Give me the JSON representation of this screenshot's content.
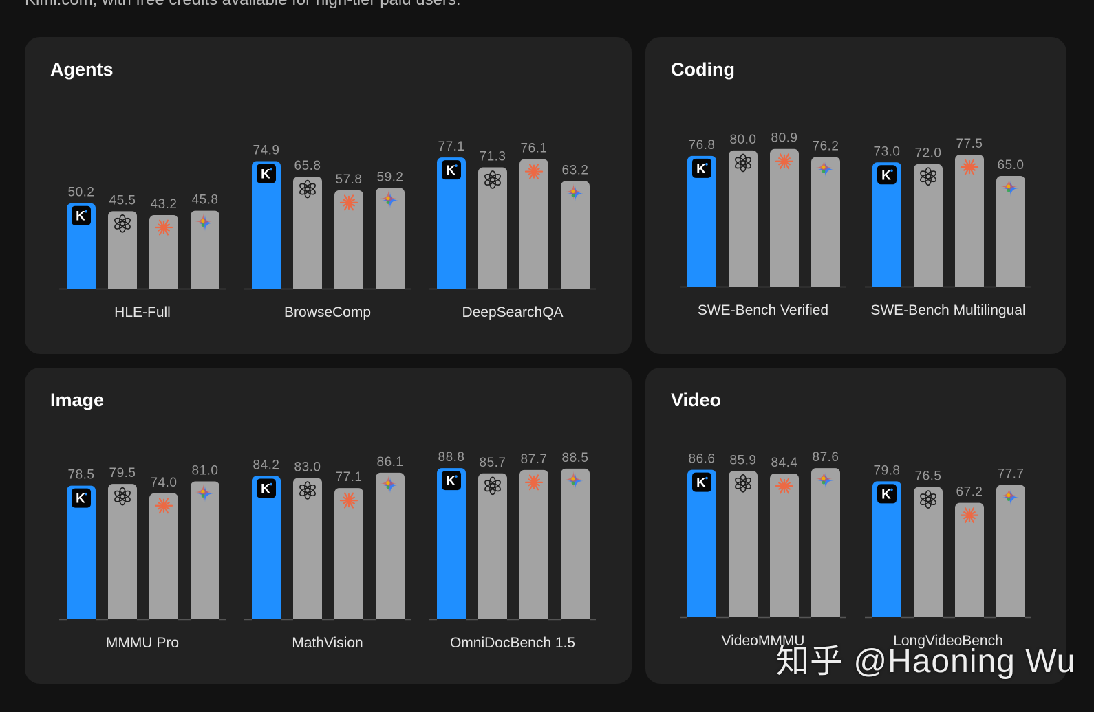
{
  "header": {
    "caption": "Kimi.com, with free credits available for high-tier paid users."
  },
  "colors": {
    "highlight": "#1f8fff",
    "bar": "#a3a3a3",
    "label": "#9a9a9a",
    "panel": "#222222",
    "background": "#121212"
  },
  "models": [
    {
      "name": "Kimi",
      "icon": "kimi-k-icon"
    },
    {
      "name": "OpenAI",
      "icon": "openai-logo-icon"
    },
    {
      "name": "Anthropic",
      "icon": "claude-starburst-icon"
    },
    {
      "name": "Gemini",
      "icon": "gemini-sparkle-icon"
    }
  ],
  "chart_data": [
    {
      "type": "bar",
      "title": "Agents",
      "categories": [
        "HLE-Full",
        "BrowseComp",
        "DeepSearchQA"
      ],
      "series": [
        {
          "name": "Kimi",
          "values": [
            50.2,
            74.9,
            77.1
          ]
        },
        {
          "name": "OpenAI",
          "values": [
            45.5,
            65.8,
            71.3
          ]
        },
        {
          "name": "Anthropic",
          "values": [
            43.2,
            57.8,
            76.1
          ]
        },
        {
          "name": "Gemini",
          "values": [
            45.8,
            59.2,
            63.2
          ]
        }
      ]
    },
    {
      "type": "bar",
      "title": "Coding",
      "categories": [
        "SWE-Bench Verified",
        "SWE-Bench Multilingual"
      ],
      "series": [
        {
          "name": "Kimi",
          "values": [
            76.8,
            73.0
          ]
        },
        {
          "name": "OpenAI",
          "values": [
            80.0,
            72.0
          ]
        },
        {
          "name": "Anthropic",
          "values": [
            80.9,
            77.5
          ]
        },
        {
          "name": "Gemini",
          "values": [
            76.2,
            65.0
          ]
        }
      ]
    },
    {
      "type": "bar",
      "title": "Image",
      "categories": [
        "MMMU Pro",
        "MathVision",
        "OmniDocBench 1.5"
      ],
      "series": [
        {
          "name": "Kimi",
          "values": [
            78.5,
            84.2,
            88.8
          ]
        },
        {
          "name": "OpenAI",
          "values": [
            79.5,
            83.0,
            85.7
          ]
        },
        {
          "name": "Anthropic",
          "values": [
            74.0,
            77.1,
            87.7
          ]
        },
        {
          "name": "Gemini",
          "values": [
            81.0,
            86.1,
            88.5
          ]
        }
      ]
    },
    {
      "type": "bar",
      "title": "Video",
      "categories": [
        "VideoMMMU",
        "LongVideoBench"
      ],
      "series": [
        {
          "name": "Kimi",
          "values": [
            86.6,
            79.8
          ]
        },
        {
          "name": "OpenAI",
          "values": [
            85.9,
            76.5
          ]
        },
        {
          "name": "Anthropic",
          "values": [
            84.4,
            67.2
          ]
        },
        {
          "name": "Gemini",
          "values": [
            87.6,
            77.7
          ]
        }
      ]
    }
  ],
  "watermark": "知乎 @Haoning Wu"
}
